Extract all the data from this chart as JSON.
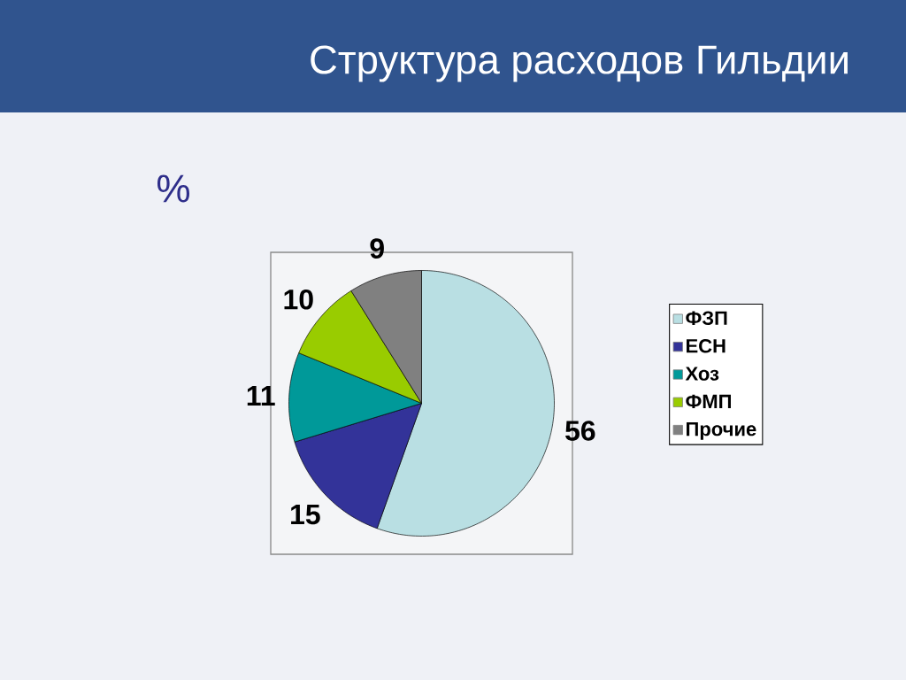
{
  "chart_data": {
    "type": "pie",
    "title": "Структура расходов Гильдии",
    "subtitle": "%",
    "categories": [
      "ФЗП",
      "ЕСН",
      "Хоз",
      "ФМП",
      "Прочие"
    ],
    "values": [
      56,
      15,
      11,
      10,
      9
    ],
    "colors": [
      "#b9dfe3",
      "#333399",
      "#009999",
      "#99cc00",
      "#808080"
    ],
    "data_labels": true,
    "legend": "right"
  }
}
